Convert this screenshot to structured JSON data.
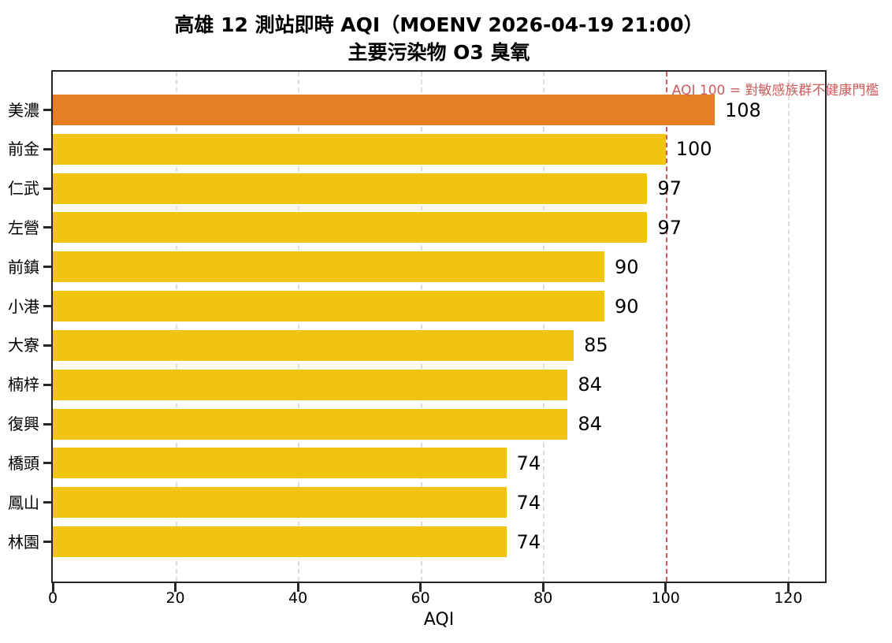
{
  "header": {
    "title": "高雄 12 測站即時 AQI（MOENV 2026-04-19 21:00）",
    "subtitle": "主要污染物 O3 臭氧"
  },
  "chart_data": {
    "type": "bar",
    "orientation": "horizontal",
    "title": "高雄 12 測站即時 AQI（MOENV 2026-04-19 21:00）",
    "subtitle": "主要污染物 O3 臭氧",
    "xlabel": "AQI",
    "categories": [
      "美濃",
      "前金",
      "仁武",
      "左營",
      "前鎮",
      "小港",
      "大寮",
      "楠梓",
      "復興",
      "橋頭",
      "鳳山",
      "林園"
    ],
    "values": [
      108,
      100,
      97,
      97,
      90,
      90,
      85,
      84,
      84,
      74,
      74,
      74
    ],
    "bar_colors": [
      "#e67e22",
      "#f1c40f",
      "#f1c40f",
      "#f1c40f",
      "#f1c40f",
      "#f1c40f",
      "#f1c40f",
      "#f1c40f",
      "#f1c40f",
      "#f1c40f",
      "#f1c40f",
      "#f1c40f"
    ],
    "xlim": [
      0,
      126
    ],
    "xticks": [
      0,
      20,
      40,
      60,
      80,
      100,
      120
    ],
    "grid": "vertical-dashed",
    "gridline_color": "#dddddd",
    "axis_color": "#262626",
    "value_label_color": "#000000",
    "threshold": {
      "x": 100,
      "label": "AQI 100 = 對敏感族群不健康門檻",
      "color": "#cd5c5c",
      "style": "dashed"
    },
    "legend": null
  }
}
